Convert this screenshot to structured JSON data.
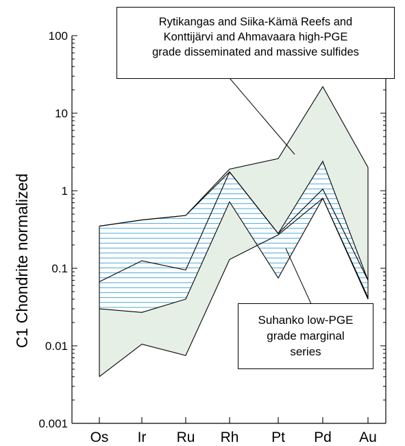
{
  "chart_data": {
    "type": "area",
    "ylabel": "C1 Chondrite normalized",
    "yscale": "log",
    "ylim": [
      0.001,
      100
    ],
    "yticks": [
      "0.001",
      "0.01",
      "0.1",
      "1",
      "10",
      "100"
    ],
    "categories": [
      "Os",
      "Ir",
      "Ru",
      "Rh",
      "Pt",
      "Pd",
      "Au"
    ],
    "grid": false,
    "series": [
      {
        "name": "Rytikangas and Siika-Kämä Reefs and Konttijärvi and Ahmavaara high-PGE grade disseminated and massive sulfides",
        "fill": "#e6efe6",
        "upper": [
          0.35,
          0.42,
          0.48,
          1.9,
          2.6,
          22,
          2.0
        ],
        "lower": [
          0.004,
          0.0105,
          0.0075,
          0.13,
          0.27,
          0.8,
          0.04
        ],
        "middle": [
          0.067,
          0.125,
          0.095,
          1.75,
          0.28,
          1.05,
          0.07
        ]
      },
      {
        "name": "Suhanko low-PGE grade marginal series",
        "fill": "#4aa8d8",
        "upper": [
          0.35,
          0.42,
          0.48,
          1.75,
          0.28,
          2.4,
          0.07
        ],
        "lower": [
          0.03,
          0.027,
          0.04,
          0.72,
          0.075,
          0.8,
          0.042
        ]
      }
    ]
  },
  "annotations": {
    "high_pge": [
      "Rytikangas and Siika-Kämä Reefs and",
      "Konttijärvi and Ahmavaara high-PGE",
      "grade disseminated and massive sulfides"
    ],
    "low_pge": [
      "Suhanko low-PGE",
      "grade marginal",
      "series"
    ]
  }
}
